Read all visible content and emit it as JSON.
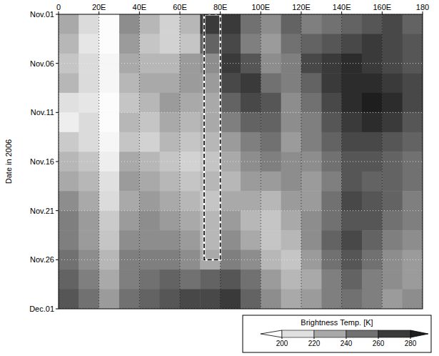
{
  "chart_data": {
    "type": "heatmap",
    "y_label": "Date in 2006",
    "xlim": [
      0,
      180
    ],
    "xticks": [
      0,
      {
        "value": 20,
        "label": "20E"
      },
      {
        "value": 40,
        "label": "40E"
      },
      {
        "value": 60,
        "label": "60E"
      },
      {
        "value": 80,
        "label": "80E"
      },
      {
        "value": 100,
        "label": "100E"
      },
      {
        "value": 120,
        "label": "120E"
      },
      {
        "value": 140,
        "label": "140E"
      },
      {
        "value": 160,
        "label": "160E"
      },
      180
    ],
    "ylim": [
      1,
      31
    ],
    "yticks": [
      {
        "value": 1,
        "label": "Nov.01"
      },
      {
        "value": 6,
        "label": "Nov.06"
      },
      {
        "value": 11,
        "label": "Nov.11"
      },
      {
        "value": 16,
        "label": "Nov.16"
      },
      {
        "value": 21,
        "label": "Nov.21"
      },
      {
        "value": 26,
        "label": "Nov.26"
      },
      {
        "value": 31,
        "label": "Dec.01"
      }
    ],
    "grid": true,
    "x": [
      5,
      15,
      25,
      35,
      45,
      55,
      65,
      75,
      85,
      95,
      105,
      115,
      125,
      135,
      145,
      155,
      165,
      175
    ],
    "y": [
      2,
      4,
      6,
      8,
      10,
      12,
      14,
      16,
      18,
      20,
      22,
      24,
      26,
      28,
      30
    ],
    "cells": [
      [
        230,
        212,
        200,
        240,
        225,
        215,
        225,
        270,
        270,
        250,
        240,
        255,
        245,
        250,
        255,
        260,
        265,
        255
      ],
      [
        225,
        208,
        200,
        235,
        220,
        215,
        220,
        255,
        265,
        245,
        235,
        250,
        255,
        260,
        265,
        270,
        265,
        260
      ],
      [
        220,
        212,
        202,
        230,
        225,
        225,
        235,
        240,
        270,
        260,
        240,
        245,
        265,
        270,
        275,
        270,
        265,
        260
      ],
      [
        225,
        212,
        202,
        225,
        230,
        230,
        235,
        235,
        265,
        270,
        250,
        245,
        255,
        270,
        275,
        275,
        270,
        265
      ],
      [
        210,
        208,
        200,
        220,
        225,
        235,
        230,
        230,
        255,
        265,
        260,
        240,
        250,
        265,
        275,
        280,
        275,
        265
      ],
      [
        205,
        212,
        200,
        225,
        220,
        230,
        225,
        230,
        245,
        255,
        255,
        240,
        245,
        260,
        270,
        275,
        270,
        260
      ],
      [
        218,
        212,
        202,
        220,
        215,
        225,
        220,
        225,
        235,
        245,
        250,
        235,
        245,
        255,
        265,
        265,
        260,
        255
      ],
      [
        225,
        220,
        205,
        230,
        225,
        220,
        215,
        220,
        230,
        240,
        245,
        240,
        240,
        250,
        260,
        260,
        255,
        250
      ],
      [
        230,
        225,
        210,
        235,
        230,
        225,
        220,
        225,
        225,
        235,
        235,
        240,
        235,
        245,
        260,
        255,
        255,
        250
      ],
      [
        240,
        230,
        212,
        230,
        235,
        230,
        225,
        220,
        230,
        230,
        225,
        235,
        235,
        250,
        265,
        260,
        255,
        245
      ],
      [
        245,
        235,
        218,
        235,
        240,
        235,
        230,
        225,
        235,
        225,
        220,
        230,
        240,
        250,
        260,
        260,
        250,
        245
      ],
      [
        245,
        235,
        220,
        240,
        240,
        240,
        235,
        225,
        240,
        230,
        220,
        225,
        240,
        255,
        265,
        255,
        245,
        240
      ],
      [
        250,
        240,
        225,
        245,
        245,
        245,
        240,
        230,
        245,
        240,
        225,
        220,
        235,
        250,
        260,
        250,
        240,
        235
      ],
      [
        255,
        245,
        230,
        245,
        250,
        255,
        250,
        255,
        260,
        250,
        235,
        225,
        230,
        245,
        255,
        245,
        240,
        235
      ],
      [
        260,
        250,
        235,
        250,
        255,
        260,
        265,
        265,
        270,
        255,
        240,
        230,
        235,
        245,
        250,
        245,
        235,
        240
      ]
    ],
    "colorbar_label": "Brightness Temp. [K]",
    "colorbar_lim": [
      200,
      280
    ],
    "colorbar_ticks": [
      200,
      220,
      240,
      260,
      280
    ],
    "box": {
      "x": [
        72,
        80
      ],
      "y": [
        1,
        26
      ]
    }
  }
}
